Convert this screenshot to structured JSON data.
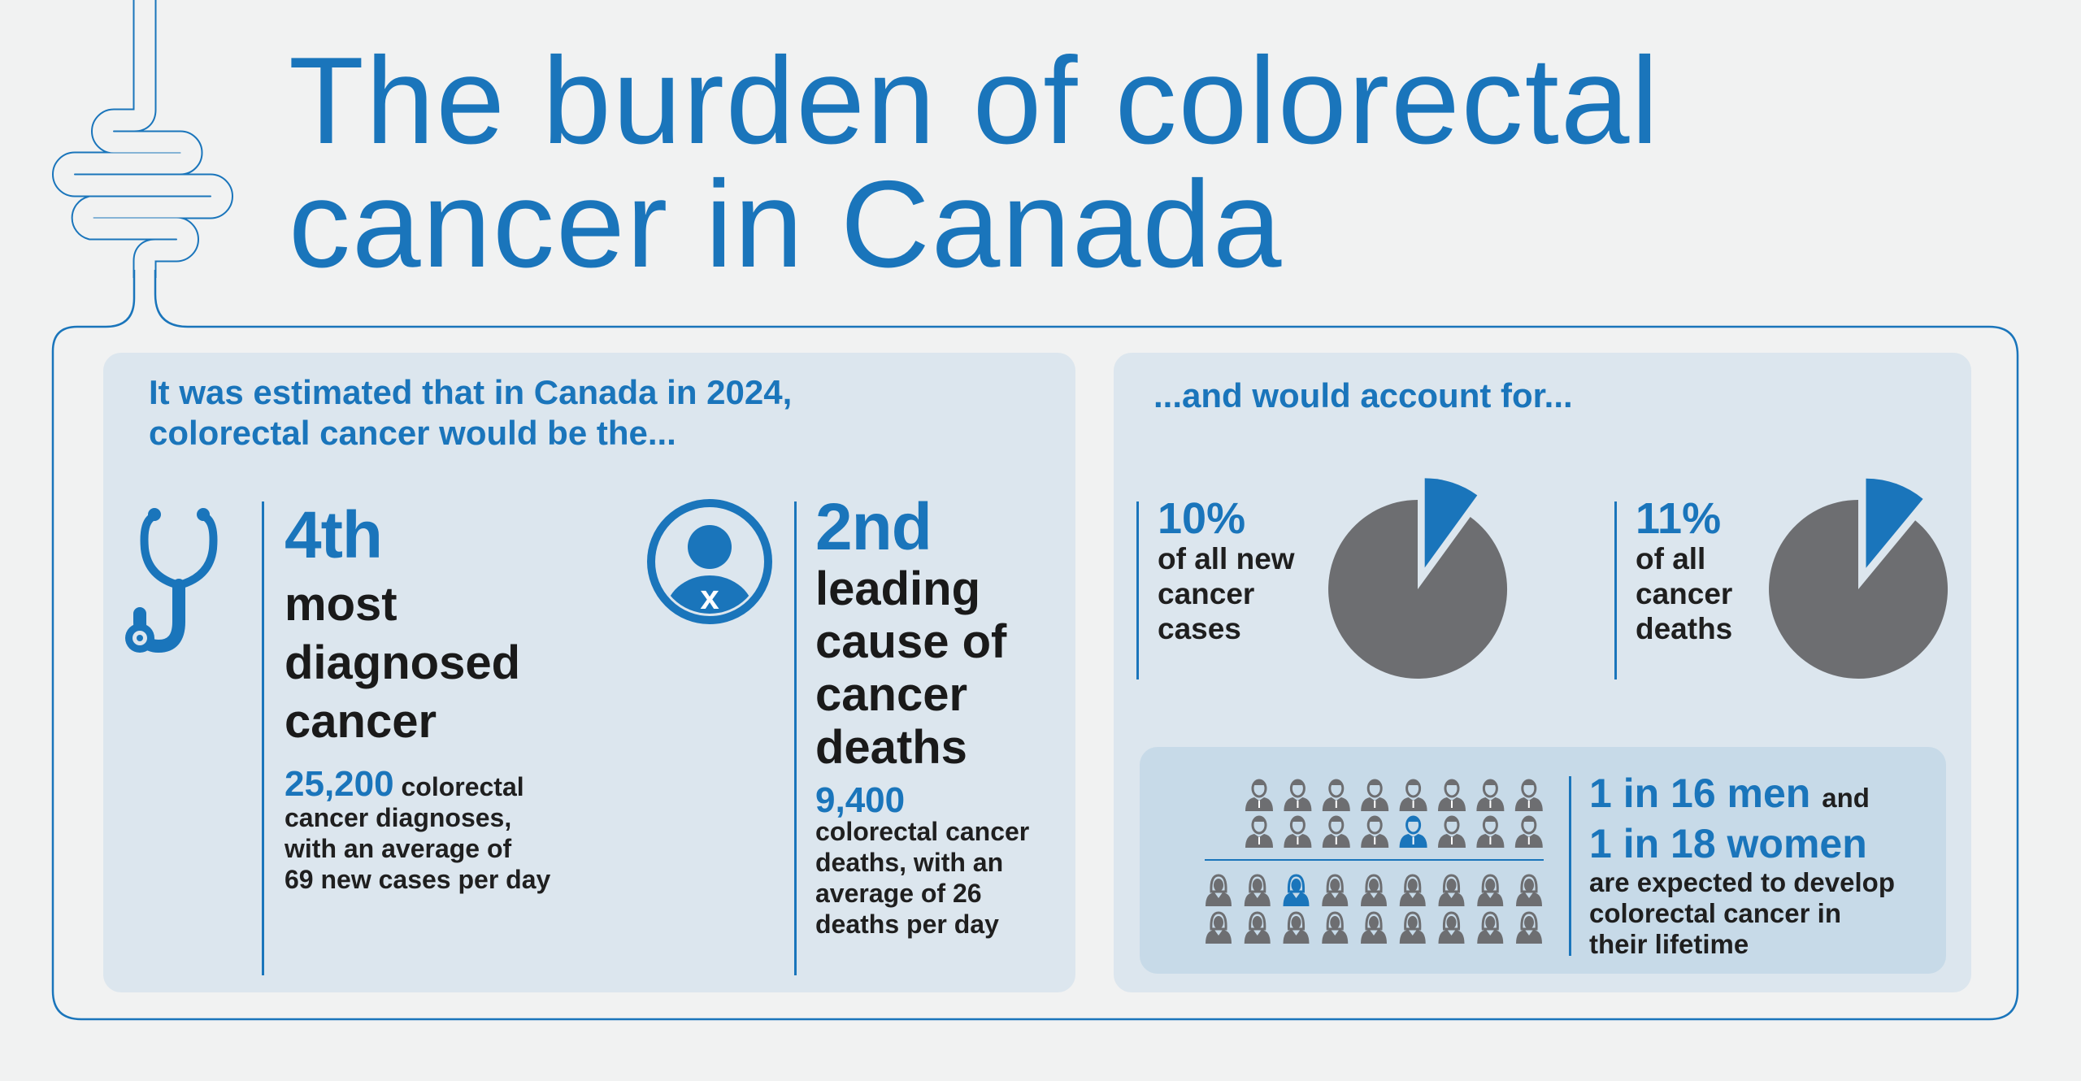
{
  "title": {
    "line1": "The burden of colorectal",
    "line2": "cancer in Canada"
  },
  "colors": {
    "accent": "#1a75bb",
    "pie_gray": "#6d6e71",
    "panel": "#dce6ee",
    "inner_panel": "#c7dae8",
    "background": "#f1f2f2"
  },
  "left_panel": {
    "intro_line1": "It was estimated that in Canada in 2024,",
    "intro_line2": "colorectal cancer would be the...",
    "stat1": {
      "icon": "stethoscope-icon",
      "rank": "4th",
      "label_lines": [
        "most",
        "diagnosed",
        "cancer"
      ],
      "count": "25,200",
      "detail_first": "colorectal",
      "detail_lines": [
        "cancer diagnoses,",
        "with an average of",
        "69 new cases per day"
      ]
    },
    "stat2": {
      "icon": "person-x-icon",
      "icon_letter": "x",
      "rank": "2nd",
      "label_lines": [
        "leading",
        "cause of",
        "cancer",
        "deaths"
      ],
      "count": "9,400",
      "detail_lines": [
        "colorectal cancer",
        "deaths, with an",
        "average of 26",
        "deaths per day"
      ]
    }
  },
  "right_panel": {
    "intro": "...and would account for...",
    "pies": [
      {
        "percent_label": "10%",
        "value": 10,
        "text_lines": [
          "of all new",
          "cancer",
          "cases"
        ]
      },
      {
        "percent_label": "11%",
        "value": 11,
        "text_lines": [
          "of all",
          "cancer",
          "deaths"
        ]
      }
    ],
    "lifetime": {
      "men_label": "1 in 16 men",
      "and": "and",
      "women_label": "1 in 18 women",
      "text_lines": [
        "are expected to develop",
        "colorectal cancer in",
        "their lifetime"
      ],
      "men_icons": 16,
      "men_highlighted": 1,
      "women_icons": 18,
      "women_highlighted": 1
    }
  }
}
